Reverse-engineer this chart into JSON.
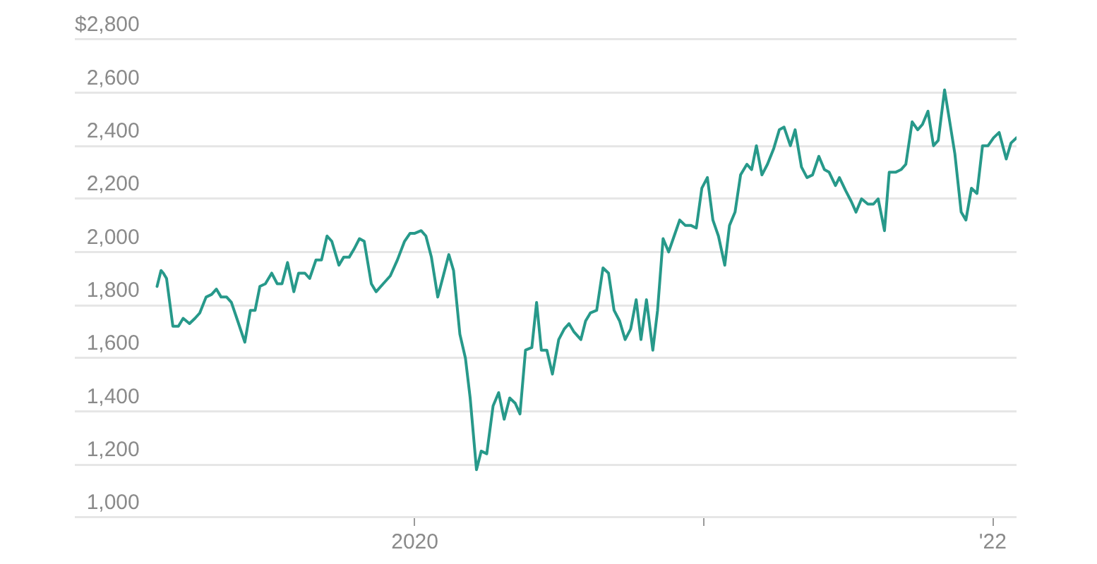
{
  "chart_data": {
    "type": "line",
    "color": "#27998a",
    "x": [
      "2019-02-09",
      "2019-02-14",
      "2019-02-17",
      "2019-02-21",
      "2019-03-01",
      "2019-03-08",
      "2019-03-14",
      "2019-03-22",
      "2019-03-29",
      "2019-04-04",
      "2019-04-12",
      "2019-04-19",
      "2019-04-25",
      "2019-05-01",
      "2019-05-08",
      "2019-05-14",
      "2019-05-22",
      "2019-05-31",
      "2019-06-07",
      "2019-06-13",
      "2019-06-19",
      "2019-06-26",
      "2019-07-04",
      "2019-07-11",
      "2019-07-17",
      "2019-07-24",
      "2019-08-01",
      "2019-08-07",
      "2019-08-15",
      "2019-08-21",
      "2019-08-29",
      "2019-09-05",
      "2019-09-12",
      "2019-09-18",
      "2019-09-27",
      "2019-10-03",
      "2019-10-10",
      "2019-10-16",
      "2019-10-23",
      "2019-10-29",
      "2019-11-07",
      "2019-11-13",
      "2019-11-22",
      "2019-12-01",
      "2019-12-10",
      "2019-12-19",
      "2019-12-26",
      "2020-01-01",
      "2020-01-09",
      "2020-01-15",
      "2020-01-22",
      "2020-01-30",
      "2020-02-06",
      "2020-02-13",
      "2020-02-19",
      "2020-02-27",
      "2020-03-05",
      "2020-03-11",
      "2020-03-19",
      "2020-03-25",
      "2020-04-01",
      "2020-04-09",
      "2020-04-16",
      "2020-04-23",
      "2020-04-30",
      "2020-05-07",
      "2020-05-13",
      "2020-05-20",
      "2020-05-28",
      "2020-06-03",
      "2020-06-09",
      "2020-06-16",
      "2020-06-23",
      "2020-07-01",
      "2020-07-08",
      "2020-07-14",
      "2020-07-20",
      "2020-07-29",
      "2020-08-04",
      "2020-08-10",
      "2020-08-18",
      "2020-08-26",
      "2020-09-02",
      "2020-09-09",
      "2020-09-16",
      "2020-09-23",
      "2020-09-30",
      "2020-10-07",
      "2020-10-13",
      "2020-10-20",
      "2020-10-28",
      "2020-11-03",
      "2020-11-10",
      "2020-11-17",
      "2020-11-24",
      "2020-12-01",
      "2020-12-08",
      "2020-12-15",
      "2020-12-22",
      "2020-12-29",
      "2021-01-05",
      "2021-01-12",
      "2021-01-19",
      "2021-01-27",
      "2021-02-02",
      "2021-02-09",
      "2021-02-16",
      "2021-02-24",
      "2021-03-02",
      "2021-03-08",
      "2021-03-15",
      "2021-03-22",
      "2021-03-30",
      "2021-04-06",
      "2021-04-12",
      "2021-04-20",
      "2021-04-26",
      "2021-05-04",
      "2021-05-11",
      "2021-05-18",
      "2021-05-26",
      "2021-06-02",
      "2021-06-08",
      "2021-06-16",
      "2021-06-21",
      "2021-06-29",
      "2021-07-06",
      "2021-07-12",
      "2021-07-19",
      "2021-07-27",
      "2021-08-03",
      "2021-08-09",
      "2021-08-17",
      "2021-08-23",
      "2021-08-31",
      "2021-09-07",
      "2021-09-13",
      "2021-09-21",
      "2021-09-28",
      "2021-10-04",
      "2021-10-11",
      "2021-10-18",
      "2021-10-24",
      "2021-11-01",
      "2021-11-07",
      "2021-11-14",
      "2021-11-22",
      "2021-11-28",
      "2021-12-05",
      "2021-12-12",
      "2021-12-19",
      "2021-12-26",
      "2022-01-02",
      "2022-01-09",
      "2022-01-18",
      "2022-01-24",
      "2022-01-31"
    ],
    "values": [
      1870,
      1930,
      1920,
      1900,
      1720,
      1720,
      1750,
      1730,
      1750,
      1770,
      1830,
      1840,
      1860,
      1830,
      1830,
      1810,
      1740,
      1660,
      1780,
      1780,
      1870,
      1880,
      1920,
      1880,
      1880,
      1960,
      1850,
      1920,
      1920,
      1900,
      1970,
      1970,
      2060,
      2040,
      1950,
      1980,
      1980,
      2010,
      2050,
      2040,
      1880,
      1850,
      1880,
      1910,
      1970,
      2040,
      2070,
      2070,
      2080,
      2060,
      1980,
      1830,
      1910,
      1990,
      1930,
      1690,
      1600,
      1450,
      1180,
      1250,
      1240,
      1420,
      1470,
      1370,
      1450,
      1430,
      1390,
      1630,
      1640,
      1810,
      1630,
      1630,
      1540,
      1670,
      1710,
      1730,
      1700,
      1670,
      1740,
      1770,
      1780,
      1940,
      1920,
      1780,
      1740,
      1670,
      1710,
      1820,
      1670,
      1820,
      1630,
      1780,
      2050,
      2000,
      2060,
      2120,
      2100,
      2100,
      2090,
      2240,
      2280,
      2120,
      2060,
      1950,
      2100,
      2150,
      2290,
      2330,
      2310,
      2400,
      2290,
      2330,
      2390,
      2460,
      2470,
      2400,
      2460,
      2320,
      2280,
      2290,
      2360,
      2310,
      2300,
      2250,
      2280,
      2230,
      2190,
      2150,
      2200,
      2180,
      2180,
      2200,
      2080,
      2300,
      2300,
      2310,
      2330,
      2490,
      2460,
      2480,
      2530,
      2400,
      2420,
      2610,
      2500,
      2370,
      2150,
      2120,
      2240,
      2220,
      2400,
      2400,
      2430,
      2450,
      2350,
      2410,
      2430
    ],
    "xlim": [
      "2018-10-28",
      "2022-01-31"
    ],
    "xticks": [
      {
        "value": "2020-01-01",
        "label": "2020"
      },
      {
        "value": "2021-01-01",
        "label": null
      },
      {
        "value": "2022-01-01",
        "label": "'22"
      }
    ],
    "ylim": [
      1000,
      2800
    ],
    "yticks": [
      {
        "value": 1000,
        "label": "1,000"
      },
      {
        "value": 1200,
        "label": "1,200"
      },
      {
        "value": 1400,
        "label": "1,400"
      },
      {
        "value": 1600,
        "label": "1,600"
      },
      {
        "value": 1800,
        "label": "1,800"
      },
      {
        "value": 2000,
        "label": "2,000"
      },
      {
        "value": 2200,
        "label": "2,200"
      },
      {
        "value": 2400,
        "label": "2,400"
      },
      {
        "value": 2600,
        "label": "2,600"
      },
      {
        "value": 2800,
        "label": "$2,800"
      }
    ],
    "grid": "y"
  }
}
